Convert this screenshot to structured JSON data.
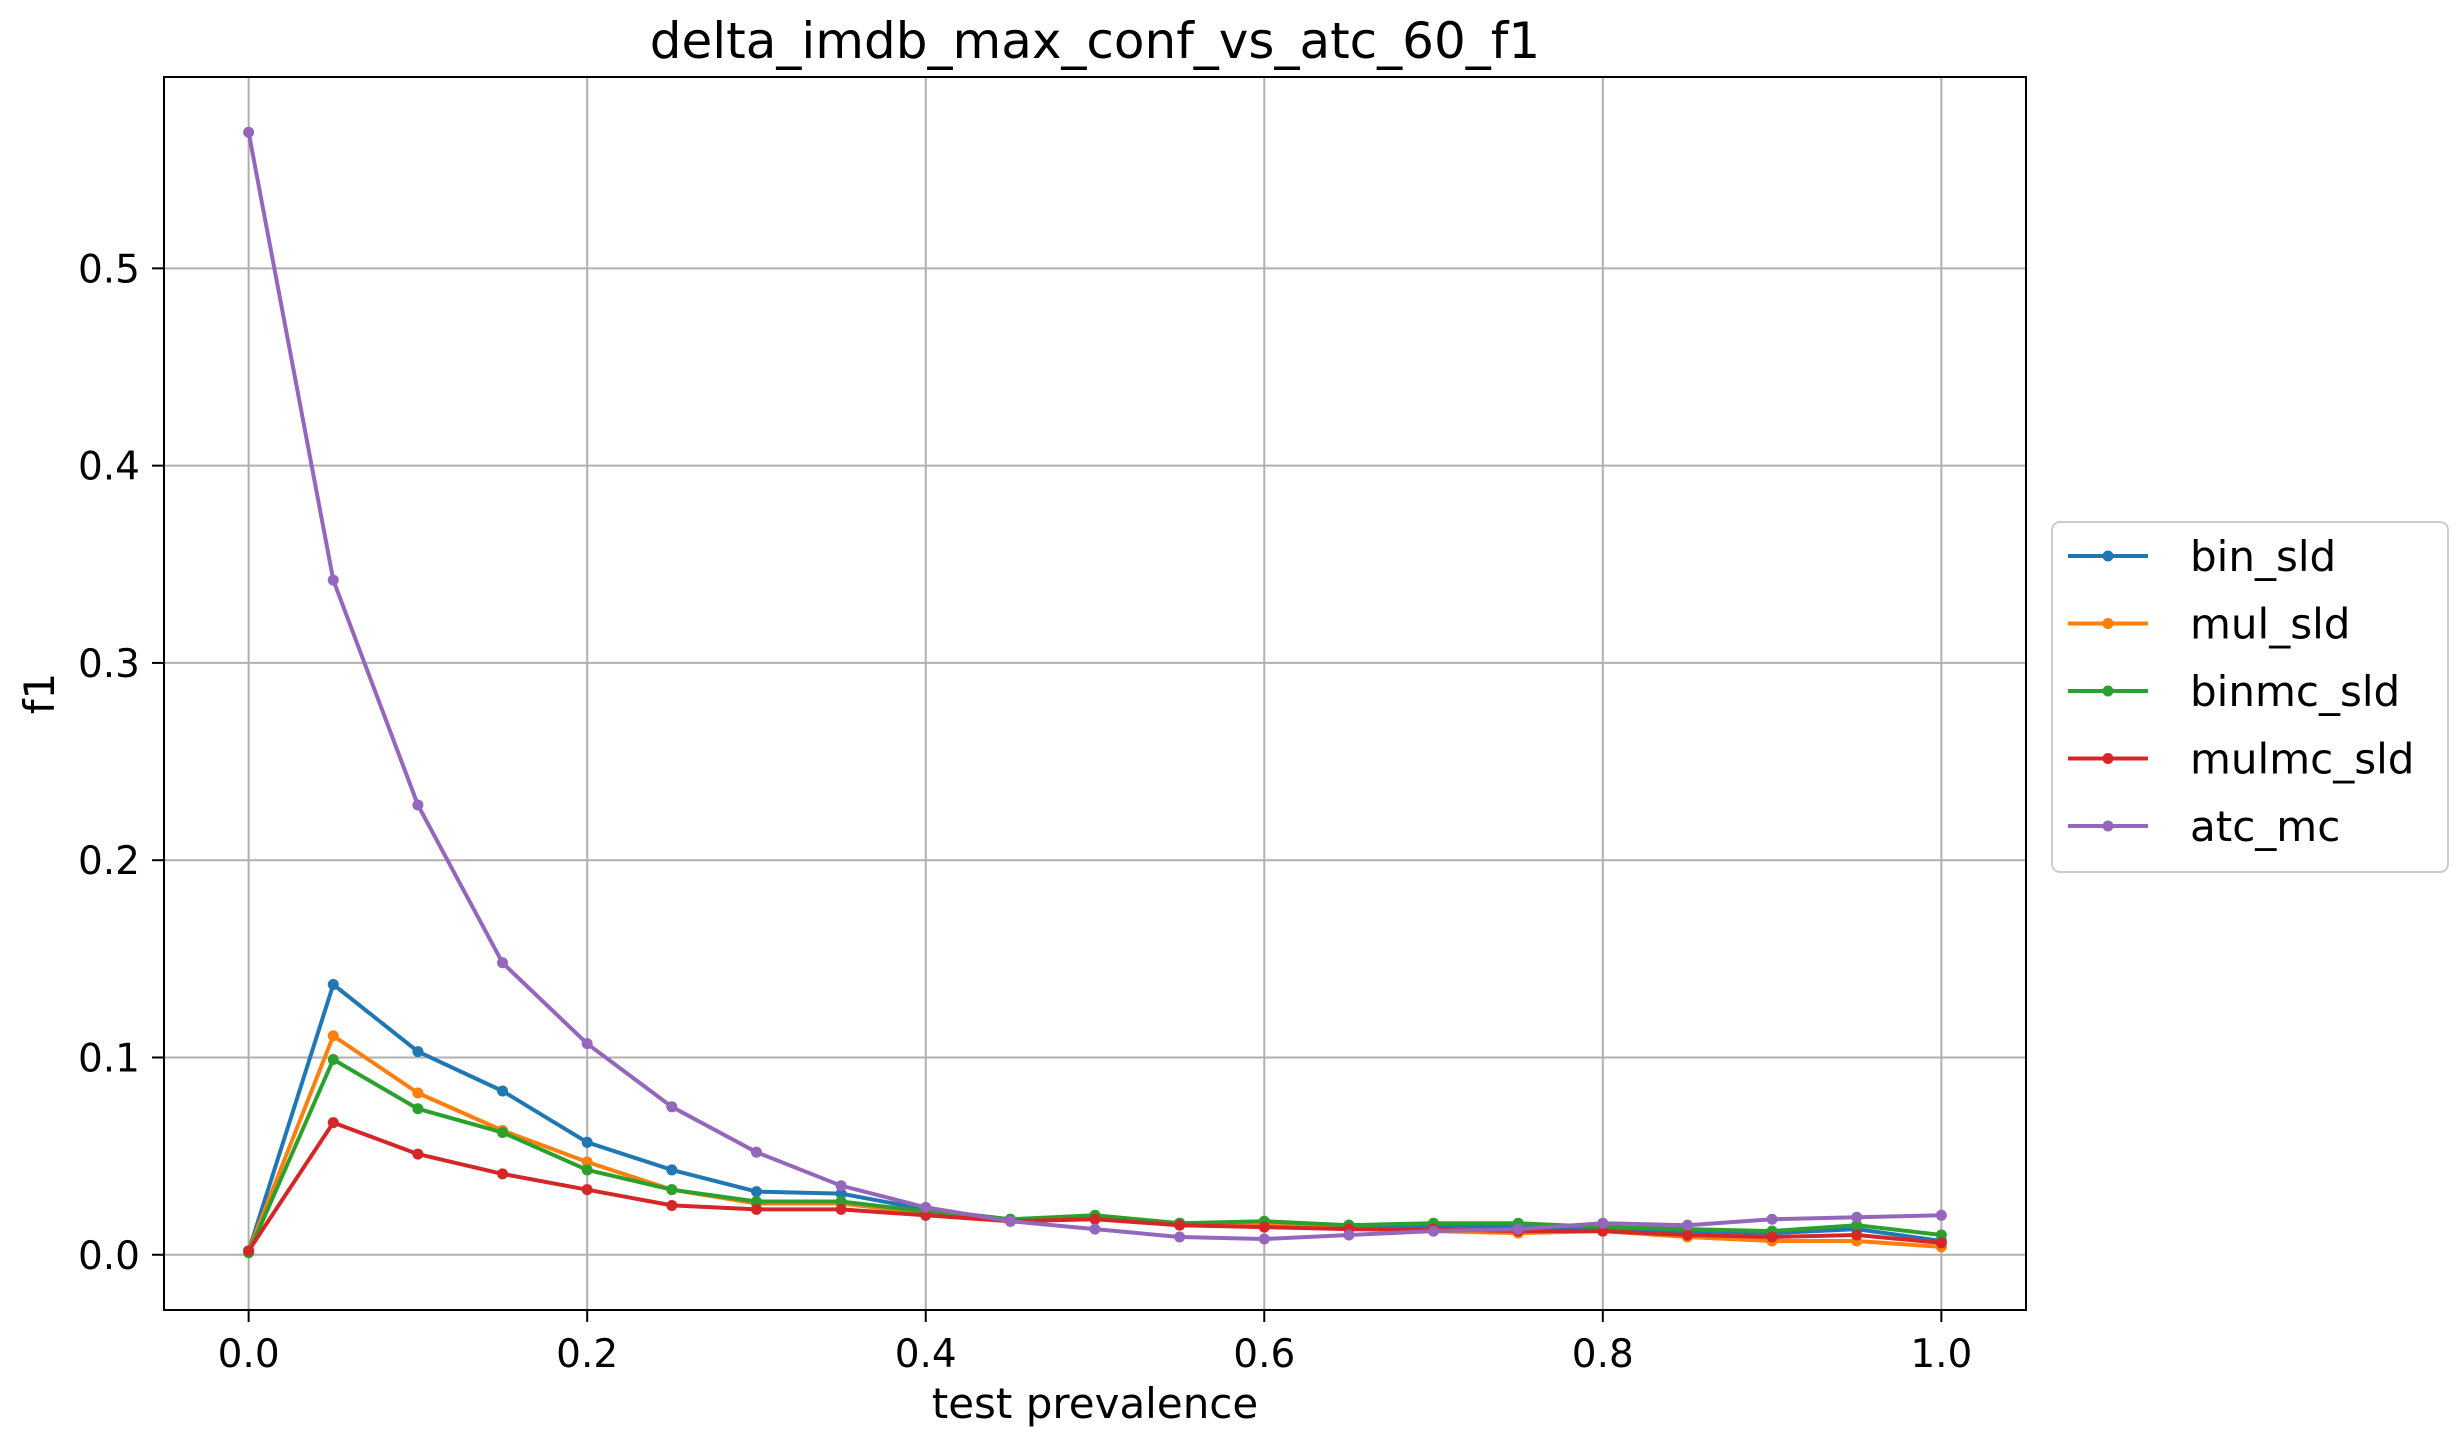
{
  "chart_data": {
    "type": "line",
    "title": "delta_imdb_max_conf_vs_atc_60_f1",
    "xlabel": "test prevalence",
    "ylabel": "f1",
    "xlim": [
      -0.05,
      1.05
    ],
    "ylim": [
      -0.028,
      0.597
    ],
    "xticks": [
      0.0,
      0.2,
      0.4,
      0.6,
      0.8,
      1.0
    ],
    "xtick_labels": [
      "0.0",
      "0.2",
      "0.4",
      "0.6",
      "0.8",
      "1.0"
    ],
    "yticks": [
      0.0,
      0.1,
      0.2,
      0.3,
      0.4,
      0.5
    ],
    "ytick_labels": [
      "0.0",
      "0.1",
      "0.2",
      "0.3",
      "0.4",
      "0.5"
    ],
    "grid": true,
    "legend_position": "center-right-outside",
    "x": [
      0.0,
      0.05,
      0.1,
      0.15,
      0.2,
      0.25,
      0.3,
      0.35,
      0.4,
      0.45,
      0.5,
      0.55,
      0.6,
      0.65,
      0.7,
      0.75,
      0.8,
      0.85,
      0.9,
      0.95,
      1.0
    ],
    "series": [
      {
        "name": "bin_sld",
        "color": "#1f77b4",
        "values": [
          0.002,
          0.137,
          0.103,
          0.083,
          0.057,
          0.043,
          0.032,
          0.031,
          0.023,
          0.018,
          0.019,
          0.016,
          0.016,
          0.015,
          0.015,
          0.014,
          0.013,
          0.012,
          0.011,
          0.013,
          0.007
        ]
      },
      {
        "name": "mul_sld",
        "color": "#ff7f0e",
        "values": [
          0.002,
          0.111,
          0.082,
          0.063,
          0.047,
          0.033,
          0.026,
          0.026,
          0.021,
          0.017,
          0.019,
          0.015,
          0.015,
          0.013,
          0.012,
          0.011,
          0.012,
          0.009,
          0.007,
          0.007,
          0.004
        ]
      },
      {
        "name": "binmc_sld",
        "color": "#2ca02c",
        "values": [
          0.001,
          0.099,
          0.074,
          0.062,
          0.043,
          0.033,
          0.027,
          0.027,
          0.022,
          0.018,
          0.02,
          0.016,
          0.017,
          0.015,
          0.016,
          0.016,
          0.014,
          0.013,
          0.012,
          0.015,
          0.01
        ]
      },
      {
        "name": "mulmc_sld",
        "color": "#d62728",
        "values": [
          0.002,
          0.067,
          0.051,
          0.041,
          0.033,
          0.025,
          0.023,
          0.023,
          0.02,
          0.017,
          0.018,
          0.015,
          0.014,
          0.013,
          0.013,
          0.012,
          0.012,
          0.01,
          0.009,
          0.01,
          0.006
        ]
      },
      {
        "name": "atc_mc",
        "color": "#9467bd",
        "values": [
          0.569,
          0.342,
          0.228,
          0.148,
          0.107,
          0.075,
          0.052,
          0.035,
          0.024,
          0.017,
          0.013,
          0.009,
          0.008,
          0.01,
          0.012,
          0.013,
          0.016,
          0.015,
          0.018,
          0.019,
          0.02
        ]
      }
    ]
  }
}
